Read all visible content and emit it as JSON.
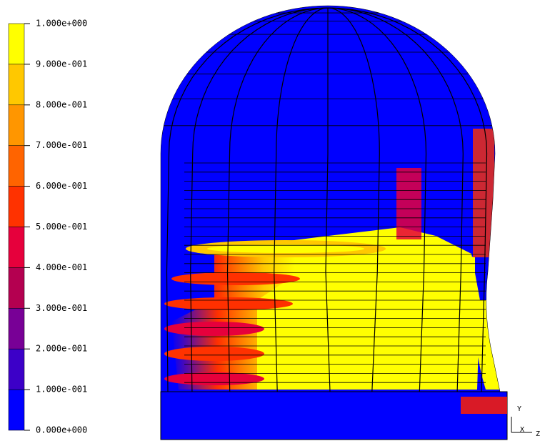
{
  "legend": {
    "labels": [
      "1.000e+000",
      "9.000e-001",
      "8.000e-001",
      "7.000e-001",
      "6.000e-001",
      "5.000e-001",
      "4.000e-001",
      "3.000e-001",
      "2.000e-001",
      "1.000e-001",
      "0.000e+000"
    ],
    "colors": [
      "#ffff00",
      "#ffc800",
      "#ff9600",
      "#ff6400",
      "#ff3200",
      "#e6003c",
      "#b40050",
      "#780096",
      "#3c00c8",
      "#0000ff"
    ]
  },
  "triad": {
    "y": "Y",
    "x": "X",
    "z": "Z"
  }
}
